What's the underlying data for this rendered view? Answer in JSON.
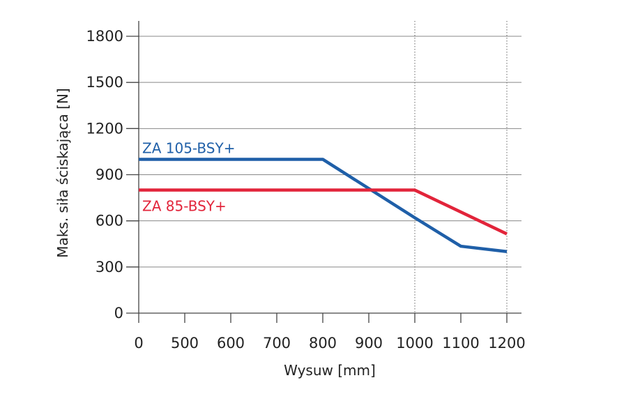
{
  "chart_data": {
    "type": "line",
    "xlabel": "Wysuw [mm]",
    "ylabel": "Maks. siła ściskająca [N]",
    "x_categories": [
      "0",
      "500",
      "600",
      "700",
      "800",
      "900",
      "1000",
      "1100",
      "1200"
    ],
    "y_ticks": [
      0,
      300,
      600,
      900,
      1200,
      1500,
      1800
    ],
    "ylim": [
      0,
      1800
    ],
    "grid": "horizontal",
    "dotted_vertical_lines_at": [
      "1000",
      "1200"
    ],
    "series": [
      {
        "name": "ZA 105-BSY+",
        "color": "#1f5fa8",
        "points": [
          {
            "x": "0",
            "y": 1000
          },
          {
            "x": "800",
            "y": 1000
          },
          {
            "x": "1000",
            "y": 620
          },
          {
            "x": "1100",
            "y": 435
          },
          {
            "x": "1200",
            "y": 400
          }
        ]
      },
      {
        "name": "ZA 85-BSY+",
        "color": "#e2243a",
        "points": [
          {
            "x": "0",
            "y": 800
          },
          {
            "x": "1000",
            "y": 800
          },
          {
            "x": "1200",
            "y": 515
          }
        ]
      }
    ]
  }
}
